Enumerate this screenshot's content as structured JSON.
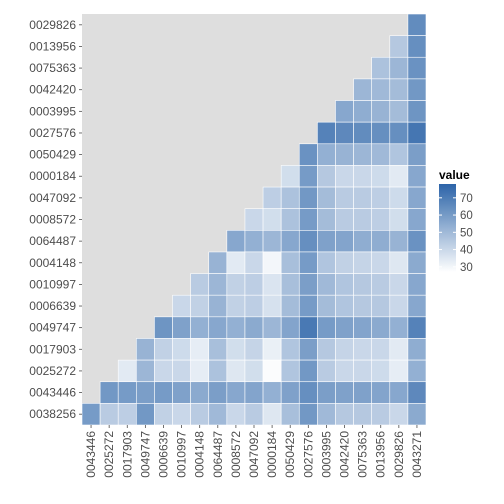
{
  "chart_data": {
    "type": "heatmap",
    "title": "",
    "xlabel": "",
    "ylabel": "",
    "x_categories": [
      "0043446",
      "0025272",
      "0017903",
      "0049747",
      "0006639",
      "0010997",
      "0004148",
      "0064487",
      "0008572",
      "0047092",
      "0000184",
      "0050429",
      "0027576",
      "0003995",
      "0042420",
      "0075363",
      "0013956",
      "0029826",
      "0043271"
    ],
    "y_categories_top_to_bottom": [
      "0029826",
      "0013956",
      "0075363",
      "0042420",
      "0003995",
      "0027576",
      "0050429",
      "0000184",
      "0047092",
      "0008572",
      "0064487",
      "0004148",
      "0010997",
      "0006639",
      "0049747",
      "0017903",
      "0025272",
      "0043446",
      "0038256"
    ],
    "value_range": [
      27,
      78
    ],
    "color_low": "#ffffff",
    "color_high": "#2c64a8",
    "panel_background": "#dedede",
    "legend": {
      "title": "value",
      "ticks": [
        30,
        40,
        50,
        60,
        70
      ],
      "position": "right"
    },
    "values": [
      [
        null,
        null,
        null,
        null,
        null,
        null,
        null,
        null,
        null,
        null,
        null,
        null,
        null,
        null,
        null,
        null,
        null,
        null,
        65
      ],
      [
        null,
        null,
        null,
        null,
        null,
        null,
        null,
        null,
        null,
        null,
        null,
        null,
        null,
        null,
        null,
        null,
        null,
        45,
        64
      ],
      [
        null,
        null,
        null,
        null,
        null,
        null,
        null,
        null,
        null,
        null,
        null,
        null,
        null,
        null,
        null,
        null,
        47,
        51,
        63
      ],
      [
        null,
        null,
        null,
        null,
        null,
        null,
        null,
        null,
        null,
        null,
        null,
        null,
        null,
        null,
        null,
        51,
        50,
        49,
        61
      ],
      [
        null,
        null,
        null,
        null,
        null,
        null,
        null,
        null,
        null,
        null,
        null,
        null,
        null,
        null,
        56,
        54,
        52,
        49,
        62
      ],
      [
        null,
        null,
        null,
        null,
        null,
        null,
        null,
        null,
        null,
        null,
        null,
        null,
        null,
        68,
        66,
        65,
        64,
        64,
        72
      ],
      [
        null,
        null,
        null,
        null,
        null,
        null,
        null,
        null,
        null,
        null,
        null,
        null,
        63,
        53,
        52,
        51,
        50,
        46,
        59
      ],
      [
        null,
        null,
        null,
        null,
        null,
        null,
        null,
        null,
        null,
        null,
        null,
        38,
        60,
        45,
        40,
        40,
        39,
        34,
        56
      ],
      [
        null,
        null,
        null,
        null,
        null,
        null,
        null,
        null,
        null,
        null,
        43,
        47,
        61,
        49,
        44,
        44,
        43,
        39,
        56
      ],
      [
        null,
        null,
        null,
        null,
        null,
        null,
        null,
        null,
        null,
        40,
        38,
        47,
        60,
        49,
        44,
        44,
        43,
        38,
        56
      ],
      [
        null,
        null,
        null,
        null,
        null,
        null,
        null,
        null,
        56,
        53,
        51,
        56,
        64,
        58,
        57,
        54,
        54,
        52,
        63
      ],
      [
        null,
        null,
        null,
        null,
        null,
        null,
        null,
        52,
        34,
        40,
        30,
        48,
        60,
        46,
        42,
        41,
        40,
        35,
        55
      ],
      [
        null,
        null,
        null,
        null,
        null,
        null,
        44,
        51,
        42,
        43,
        36,
        48,
        59,
        50,
        46,
        45,
        44,
        40,
        56
      ],
      [
        null,
        null,
        null,
        null,
        null,
        40,
        42,
        52,
        42,
        43,
        37,
        49,
        60,
        49,
        46,
        45,
        45,
        40,
        56
      ],
      [
        null,
        null,
        null,
        null,
        62,
        58,
        53,
        56,
        53,
        55,
        51,
        57,
        71,
        60,
        58,
        57,
        55,
        53,
        68
      ],
      [
        null,
        null,
        null,
        52,
        42,
        39,
        33,
        48,
        38,
        41,
        32,
        46,
        59,
        45,
        41,
        40,
        40,
        34,
        54
      ],
      [
        null,
        null,
        34,
        51,
        40,
        40,
        33,
        47,
        35,
        38,
        28,
        46,
        61,
        44,
        40,
        40,
        39,
        33,
        53
      ],
      [
        null,
        61,
        60,
        59,
        60,
        58,
        55,
        59,
        56,
        57,
        53,
        58,
        64,
        59,
        58,
        58,
        57,
        56,
        66
      ],
      [
        60,
        44,
        43,
        61,
        42,
        40,
        44,
        50,
        40,
        44,
        35,
        48,
        61,
        50,
        45,
        45,
        44,
        40,
        55
      ]
    ]
  }
}
